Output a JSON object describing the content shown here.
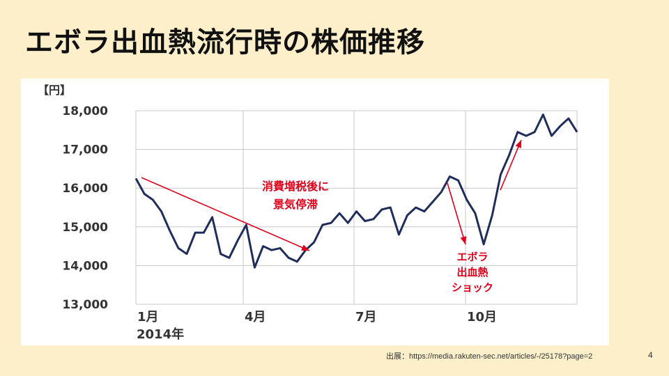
{
  "slide": {
    "title": "エボラ出血熱流行時の株価推移",
    "source": "出展：https://media.rakuten-sec.net/articles/-/25178?page=2",
    "page_number": "4"
  },
  "colors": {
    "background": "#fcefc9",
    "line": "#1f2d5c",
    "arrow": "#e0001a",
    "grid": "#c8c8c8"
  },
  "chart_data": {
    "type": "line",
    "unit_label": "【円】",
    "y_ticks": [
      "18,000",
      "17,000",
      "16,000",
      "15,000",
      "14,000",
      "13,000"
    ],
    "ylim": [
      13000,
      18000
    ],
    "x_ticks": [
      "1月",
      "4月",
      "7月",
      "10月"
    ],
    "x_sublabel": "2014年",
    "grid": true,
    "series": [
      {
        "values": [
          16250,
          15850,
          15700,
          15400,
          14900,
          14450,
          14300,
          14850,
          14850,
          15250,
          14300,
          14200,
          14650,
          15050,
          13950,
          14500,
          14400,
          14450,
          14200,
          14100,
          14400,
          14600,
          15050,
          15100,
          15350,
          15100,
          15400,
          15150,
          15200,
          15450,
          15500,
          14800,
          15300,
          15500,
          15400,
          15650,
          15900,
          16300,
          16200,
          15700,
          15350,
          14550,
          15300,
          16350,
          16850,
          17450,
          17350,
          17450,
          17900,
          17350,
          17600,
          17800,
          17450
        ]
      }
    ],
    "annotations": [
      {
        "lines": [
          "消費増税後に",
          "景気停滞"
        ]
      },
      {
        "lines": [
          "エボラ",
          "出血熱",
          "ショック"
        ]
      }
    ]
  }
}
